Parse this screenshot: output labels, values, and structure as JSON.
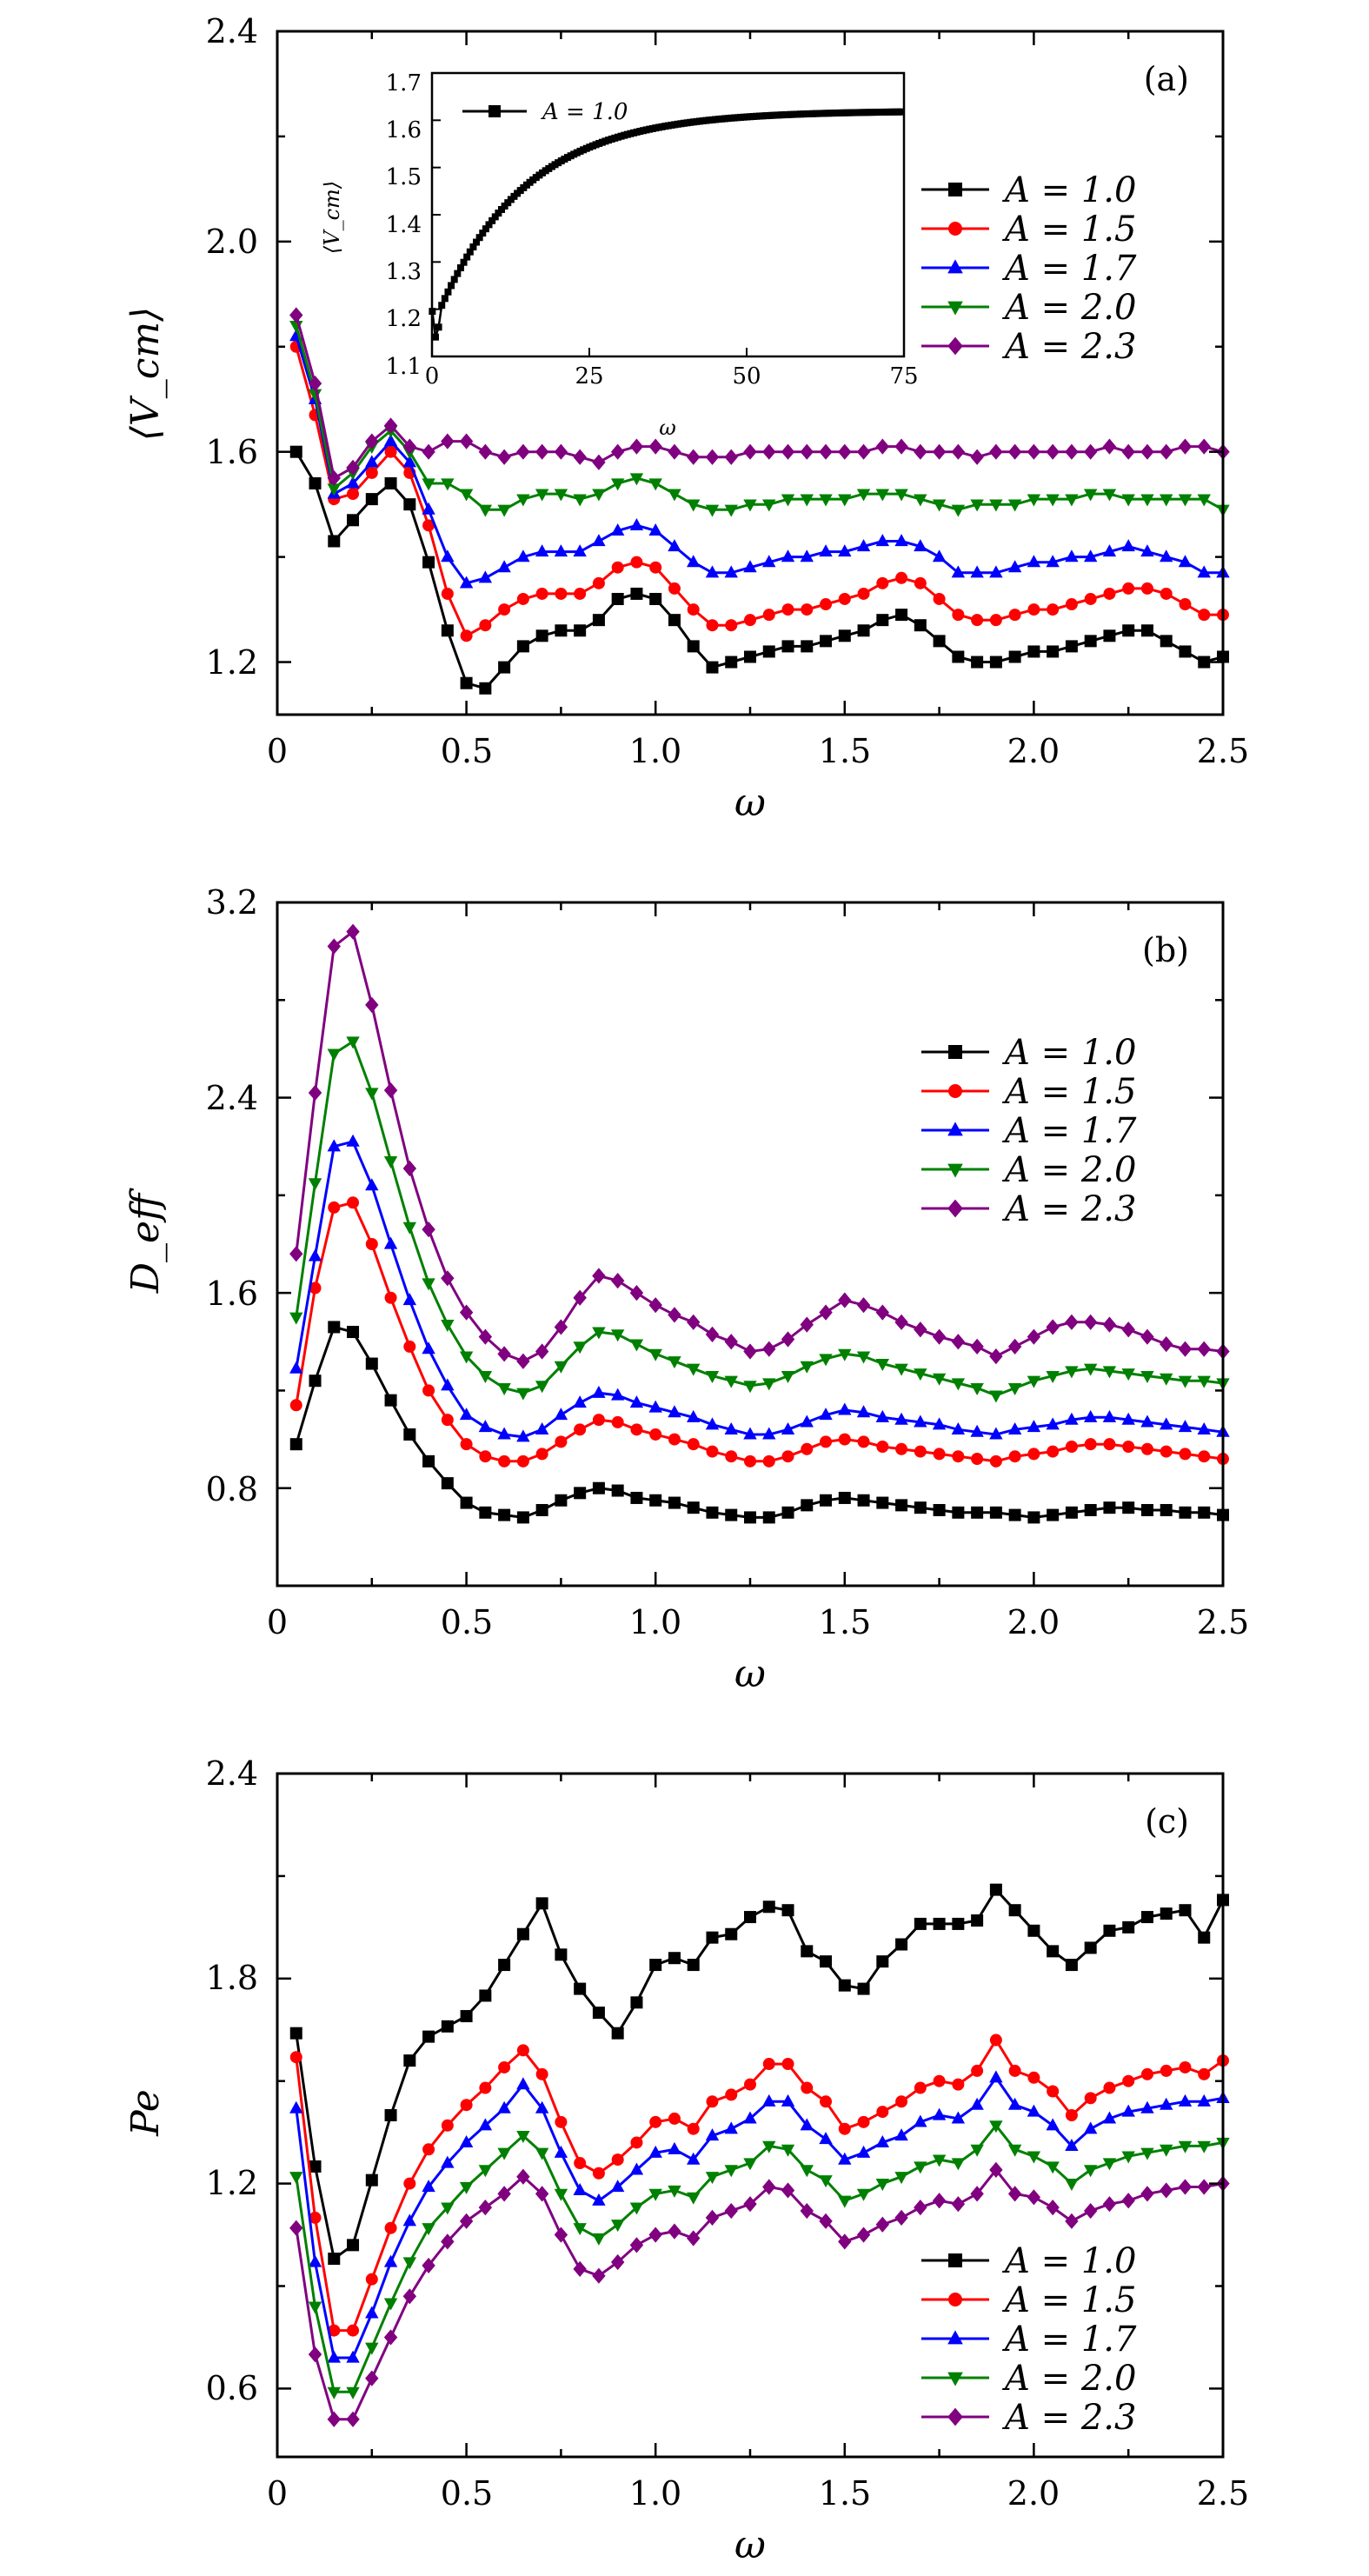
{
  "colors": {
    "black": "#000000",
    "red": "#ff0000",
    "blue": "#0000ff",
    "green": "#008000",
    "purple": "#800080"
  },
  "chart_data": [
    {
      "type": "line",
      "panel": "(a)",
      "xlabel": "ω",
      "ylabel": "⟨V_cm⟩",
      "xlim": [
        0,
        2.5
      ],
      "ylim": [
        1.1,
        2.4
      ],
      "xticks": [
        "0",
        "0.5",
        "1.0",
        "1.5",
        "2.0",
        "2.5"
      ],
      "yticks": [
        "1.2",
        "1.6",
        "2.0",
        "2.4"
      ],
      "legend_position": "right",
      "x": [
        0.05,
        0.1,
        0.15,
        0.2,
        0.25,
        0.3,
        0.35,
        0.4,
        0.45,
        0.5,
        0.55,
        0.6,
        0.65,
        0.7,
        0.75,
        0.8,
        0.85,
        0.9,
        0.95,
        1.0,
        1.05,
        1.1,
        1.15,
        1.2,
        1.25,
        1.3,
        1.35,
        1.4,
        1.45,
        1.5,
        1.55,
        1.6,
        1.65,
        1.7,
        1.75,
        1.8,
        1.85,
        1.9,
        1.95,
        2.0,
        2.05,
        2.1,
        2.15,
        2.2,
        2.25,
        2.3,
        2.35,
        2.4,
        2.45,
        2.5
      ],
      "series": [
        {
          "name": "A = 1.0",
          "color": "black",
          "marker": "square",
          "values": [
            1.6,
            1.54,
            1.43,
            1.47,
            1.51,
            1.54,
            1.5,
            1.39,
            1.26,
            1.16,
            1.15,
            1.19,
            1.23,
            1.25,
            1.26,
            1.26,
            1.28,
            1.32,
            1.33,
            1.32,
            1.28,
            1.23,
            1.19,
            1.2,
            1.21,
            1.22,
            1.23,
            1.23,
            1.24,
            1.25,
            1.26,
            1.28,
            1.29,
            1.27,
            1.24,
            1.21,
            1.2,
            1.2,
            1.21,
            1.22,
            1.22,
            1.23,
            1.24,
            1.25,
            1.26,
            1.26,
            1.24,
            1.22,
            1.2,
            1.21
          ]
        },
        {
          "name": "A = 1.5",
          "color": "red",
          "marker": "circle",
          "values": [
            1.8,
            1.67,
            1.51,
            1.52,
            1.56,
            1.6,
            1.56,
            1.46,
            1.33,
            1.25,
            1.27,
            1.3,
            1.32,
            1.33,
            1.33,
            1.33,
            1.35,
            1.38,
            1.39,
            1.38,
            1.34,
            1.3,
            1.27,
            1.27,
            1.28,
            1.29,
            1.3,
            1.3,
            1.31,
            1.32,
            1.33,
            1.35,
            1.36,
            1.35,
            1.32,
            1.29,
            1.28,
            1.28,
            1.29,
            1.3,
            1.3,
            1.31,
            1.32,
            1.33,
            1.34,
            1.34,
            1.33,
            1.31,
            1.29,
            1.29
          ]
        },
        {
          "name": "A = 1.7",
          "color": "blue",
          "marker": "triangle-up",
          "values": [
            1.82,
            1.7,
            1.52,
            1.54,
            1.58,
            1.62,
            1.58,
            1.49,
            1.4,
            1.35,
            1.36,
            1.38,
            1.4,
            1.41,
            1.41,
            1.41,
            1.43,
            1.45,
            1.46,
            1.45,
            1.42,
            1.39,
            1.37,
            1.37,
            1.38,
            1.39,
            1.4,
            1.4,
            1.41,
            1.41,
            1.42,
            1.43,
            1.43,
            1.42,
            1.4,
            1.37,
            1.37,
            1.37,
            1.38,
            1.39,
            1.39,
            1.4,
            1.4,
            1.41,
            1.42,
            1.41,
            1.4,
            1.39,
            1.37,
            1.37
          ]
        },
        {
          "name": "A = 2.0",
          "color": "green",
          "marker": "triangle-down",
          "values": [
            1.84,
            1.71,
            1.53,
            1.56,
            1.61,
            1.64,
            1.6,
            1.54,
            1.54,
            1.52,
            1.49,
            1.49,
            1.51,
            1.52,
            1.52,
            1.51,
            1.52,
            1.54,
            1.55,
            1.54,
            1.52,
            1.5,
            1.49,
            1.49,
            1.5,
            1.5,
            1.51,
            1.51,
            1.51,
            1.51,
            1.52,
            1.52,
            1.52,
            1.51,
            1.5,
            1.49,
            1.5,
            1.5,
            1.5,
            1.51,
            1.51,
            1.51,
            1.52,
            1.52,
            1.51,
            1.51,
            1.51,
            1.51,
            1.51,
            1.49
          ]
        },
        {
          "name": "A = 2.3",
          "color": "purple",
          "marker": "diamond",
          "values": [
            1.86,
            1.73,
            1.55,
            1.57,
            1.62,
            1.65,
            1.61,
            1.6,
            1.62,
            1.62,
            1.6,
            1.59,
            1.6,
            1.6,
            1.6,
            1.59,
            1.58,
            1.6,
            1.61,
            1.61,
            1.6,
            1.59,
            1.59,
            1.59,
            1.6,
            1.6,
            1.6,
            1.6,
            1.6,
            1.6,
            1.6,
            1.61,
            1.61,
            1.6,
            1.6,
            1.6,
            1.59,
            1.6,
            1.6,
            1.6,
            1.6,
            1.6,
            1.6,
            1.61,
            1.6,
            1.6,
            1.6,
            1.61,
            1.61,
            1.6
          ]
        }
      ],
      "inset": {
        "type": "line",
        "xlabel": "ω",
        "ylabel": "⟨V_cm⟩",
        "xlim": [
          0,
          75
        ],
        "ylim": [
          1.1,
          1.7
        ],
        "xticks": [
          "0",
          "25",
          "50",
          "75"
        ],
        "yticks": [
          "1.1",
          "1.2",
          "1.3",
          "1.4",
          "1.5",
          "1.6",
          "1.7"
        ],
        "legend": "A = 1.0",
        "series_name": "A = 1.0",
        "color": "black",
        "marker": "square"
      }
    },
    {
      "type": "line",
      "panel": "(b)",
      "xlabel": "ω",
      "ylabel": "D_eff",
      "xlim": [
        0,
        2.5
      ],
      "ylim": [
        0.4,
        3.2
      ],
      "xticks": [
        "0",
        "0.5",
        "1.0",
        "1.5",
        "2.0",
        "2.5"
      ],
      "yticks": [
        "0.8",
        "1.6",
        "2.4",
        "3.2"
      ],
      "legend_position": "right",
      "x": [
        0.05,
        0.1,
        0.15,
        0.2,
        0.25,
        0.3,
        0.35,
        0.4,
        0.45,
        0.5,
        0.55,
        0.6,
        0.65,
        0.7,
        0.75,
        0.8,
        0.85,
        0.9,
        0.95,
        1.0,
        1.05,
        1.1,
        1.15,
        1.2,
        1.25,
        1.3,
        1.35,
        1.4,
        1.45,
        1.5,
        1.55,
        1.6,
        1.65,
        1.7,
        1.75,
        1.8,
        1.85,
        1.9,
        1.95,
        2.0,
        2.05,
        2.1,
        2.15,
        2.2,
        2.25,
        2.3,
        2.35,
        2.4,
        2.45,
        2.5
      ],
      "series": [
        {
          "name": "A = 1.0",
          "color": "black",
          "marker": "square",
          "values": [
            0.98,
            1.24,
            1.46,
            1.44,
            1.31,
            1.16,
            1.02,
            0.91,
            0.82,
            0.74,
            0.7,
            0.69,
            0.68,
            0.71,
            0.75,
            0.78,
            0.8,
            0.79,
            0.76,
            0.75,
            0.74,
            0.72,
            0.7,
            0.69,
            0.68,
            0.68,
            0.7,
            0.73,
            0.75,
            0.76,
            0.75,
            0.74,
            0.73,
            0.72,
            0.71,
            0.7,
            0.7,
            0.7,
            0.69,
            0.68,
            0.69,
            0.7,
            0.71,
            0.72,
            0.72,
            0.71,
            0.71,
            0.7,
            0.7,
            0.69
          ]
        },
        {
          "name": "A = 1.5",
          "color": "red",
          "marker": "circle",
          "values": [
            1.14,
            1.62,
            1.95,
            1.97,
            1.8,
            1.58,
            1.38,
            1.2,
            1.08,
            0.98,
            0.93,
            0.91,
            0.91,
            0.94,
            0.99,
            1.04,
            1.08,
            1.07,
            1.04,
            1.02,
            1.0,
            0.98,
            0.95,
            0.93,
            0.91,
            0.91,
            0.93,
            0.96,
            0.99,
            1.0,
            0.99,
            0.97,
            0.96,
            0.95,
            0.94,
            0.93,
            0.92,
            0.91,
            0.93,
            0.94,
            0.95,
            0.97,
            0.98,
            0.98,
            0.97,
            0.96,
            0.95,
            0.94,
            0.93,
            0.92
          ]
        },
        {
          "name": "A = 1.7",
          "color": "blue",
          "marker": "triangle-up",
          "values": [
            1.29,
            1.75,
            2.2,
            2.22,
            2.04,
            1.8,
            1.57,
            1.37,
            1.22,
            1.1,
            1.05,
            1.02,
            1.01,
            1.04,
            1.1,
            1.15,
            1.19,
            1.18,
            1.15,
            1.13,
            1.11,
            1.09,
            1.06,
            1.04,
            1.02,
            1.02,
            1.04,
            1.07,
            1.1,
            1.12,
            1.11,
            1.09,
            1.08,
            1.07,
            1.06,
            1.04,
            1.03,
            1.02,
            1.04,
            1.05,
            1.06,
            1.08,
            1.09,
            1.09,
            1.08,
            1.07,
            1.06,
            1.05,
            1.04,
            1.03
          ]
        },
        {
          "name": "A = 2.0",
          "color": "green",
          "marker": "triangle-down",
          "values": [
            1.5,
            2.05,
            2.58,
            2.63,
            2.42,
            2.14,
            1.87,
            1.64,
            1.47,
            1.34,
            1.26,
            1.21,
            1.19,
            1.22,
            1.3,
            1.38,
            1.44,
            1.43,
            1.39,
            1.35,
            1.32,
            1.29,
            1.26,
            1.24,
            1.22,
            1.23,
            1.26,
            1.3,
            1.33,
            1.35,
            1.34,
            1.31,
            1.29,
            1.27,
            1.25,
            1.23,
            1.21,
            1.18,
            1.21,
            1.24,
            1.26,
            1.28,
            1.29,
            1.28,
            1.27,
            1.26,
            1.25,
            1.24,
            1.24,
            1.23
          ]
        },
        {
          "name": "A = 2.3",
          "color": "purple",
          "marker": "diamond",
          "values": [
            1.76,
            2.42,
            3.02,
            3.08,
            2.78,
            2.43,
            2.11,
            1.86,
            1.66,
            1.52,
            1.42,
            1.35,
            1.32,
            1.36,
            1.46,
            1.58,
            1.67,
            1.65,
            1.6,
            1.55,
            1.51,
            1.48,
            1.43,
            1.4,
            1.36,
            1.37,
            1.41,
            1.47,
            1.52,
            1.57,
            1.55,
            1.52,
            1.48,
            1.45,
            1.42,
            1.4,
            1.38,
            1.34,
            1.38,
            1.42,
            1.46,
            1.48,
            1.48,
            1.47,
            1.45,
            1.42,
            1.39,
            1.37,
            1.37,
            1.36
          ]
        }
      ]
    },
    {
      "type": "line",
      "panel": "(c)",
      "xlabel": "ω",
      "ylabel": "Pe",
      "xlim": [
        0,
        2.5
      ],
      "ylim": [
        0.4,
        2.4
      ],
      "xticks": [
        "0",
        "0.5",
        "1.0",
        "1.5",
        "2.0",
        "2.5"
      ],
      "yticks": [
        "0.6",
        "1.2",
        "1.8",
        "2.4"
      ],
      "legend_position": "bottom-right",
      "x": [
        0.05,
        0.1,
        0.15,
        0.2,
        0.25,
        0.3,
        0.35,
        0.4,
        0.45,
        0.5,
        0.55,
        0.6,
        0.65,
        0.7,
        0.75,
        0.8,
        0.85,
        0.9,
        0.95,
        1.0,
        1.05,
        1.1,
        1.15,
        1.2,
        1.25,
        1.3,
        1.35,
        1.4,
        1.45,
        1.5,
        1.55,
        1.6,
        1.65,
        1.7,
        1.75,
        1.8,
        1.85,
        1.9,
        1.95,
        2.0,
        2.05,
        2.1,
        2.15,
        2.2,
        2.25,
        2.3,
        2.35,
        2.4,
        2.45,
        2.5
      ],
      "series": [
        {
          "name": "A = 1.0",
          "color": "black",
          "marker": "square",
          "values": [
            1.64,
            1.25,
            0.98,
            1.02,
            1.21,
            1.4,
            1.56,
            1.63,
            1.66,
            1.69,
            1.75,
            1.84,
            1.93,
            2.02,
            1.87,
            1.77,
            1.7,
            1.64,
            1.73,
            1.84,
            1.86,
            1.84,
            1.92,
            1.93,
            1.98,
            2.01,
            2.0,
            1.88,
            1.85,
            1.78,
            1.77,
            1.85,
            1.9,
            1.96,
            1.96,
            1.96,
            1.97,
            2.06,
            2.0,
            1.94,
            1.88,
            1.84,
            1.89,
            1.94,
            1.95,
            1.98,
            1.99,
            2.0,
            1.92,
            2.03
          ]
        },
        {
          "name": "A = 1.5",
          "color": "red",
          "marker": "circle",
          "values": [
            1.57,
            1.1,
            0.77,
            0.77,
            0.92,
            1.07,
            1.2,
            1.3,
            1.37,
            1.43,
            1.48,
            1.54,
            1.59,
            1.52,
            1.38,
            1.26,
            1.23,
            1.27,
            1.32,
            1.38,
            1.39,
            1.36,
            1.44,
            1.46,
            1.49,
            1.55,
            1.55,
            1.48,
            1.44,
            1.36,
            1.38,
            1.41,
            1.44,
            1.48,
            1.5,
            1.49,
            1.53,
            1.62,
            1.53,
            1.51,
            1.47,
            1.4,
            1.45,
            1.48,
            1.5,
            1.52,
            1.53,
            1.54,
            1.52,
            1.56
          ]
        },
        {
          "name": "A = 1.7",
          "color": "blue",
          "marker": "triangle-up",
          "values": [
            1.42,
            0.97,
            0.69,
            0.69,
            0.82,
            0.97,
            1.09,
            1.19,
            1.26,
            1.32,
            1.37,
            1.42,
            1.49,
            1.42,
            1.29,
            1.18,
            1.15,
            1.19,
            1.24,
            1.29,
            1.3,
            1.27,
            1.34,
            1.36,
            1.39,
            1.44,
            1.44,
            1.37,
            1.33,
            1.27,
            1.29,
            1.32,
            1.34,
            1.38,
            1.4,
            1.39,
            1.43,
            1.51,
            1.43,
            1.41,
            1.37,
            1.31,
            1.36,
            1.39,
            1.41,
            1.42,
            1.43,
            1.44,
            1.44,
            1.45
          ]
        },
        {
          "name": "A = 2.0",
          "color": "green",
          "marker": "triangle-down",
          "values": [
            1.22,
            0.84,
            0.59,
            0.59,
            0.72,
            0.85,
            0.97,
            1.07,
            1.13,
            1.19,
            1.24,
            1.29,
            1.34,
            1.29,
            1.17,
            1.07,
            1.04,
            1.08,
            1.13,
            1.17,
            1.18,
            1.16,
            1.22,
            1.24,
            1.26,
            1.31,
            1.3,
            1.24,
            1.21,
            1.15,
            1.17,
            1.2,
            1.22,
            1.25,
            1.27,
            1.26,
            1.3,
            1.37,
            1.3,
            1.28,
            1.25,
            1.2,
            1.24,
            1.26,
            1.28,
            1.29,
            1.3,
            1.31,
            1.31,
            1.32
          ]
        },
        {
          "name": "A = 2.3",
          "color": "purple",
          "marker": "diamond",
          "values": [
            1.07,
            0.7,
            0.51,
            0.51,
            0.63,
            0.75,
            0.87,
            0.96,
            1.03,
            1.09,
            1.13,
            1.17,
            1.22,
            1.17,
            1.05,
            0.95,
            0.93,
            0.97,
            1.02,
            1.05,
            1.06,
            1.04,
            1.1,
            1.12,
            1.14,
            1.19,
            1.18,
            1.12,
            1.09,
            1.03,
            1.05,
            1.08,
            1.1,
            1.13,
            1.15,
            1.14,
            1.17,
            1.24,
            1.17,
            1.16,
            1.13,
            1.09,
            1.12,
            1.14,
            1.15,
            1.17,
            1.18,
            1.19,
            1.19,
            1.2
          ]
        }
      ]
    }
  ]
}
